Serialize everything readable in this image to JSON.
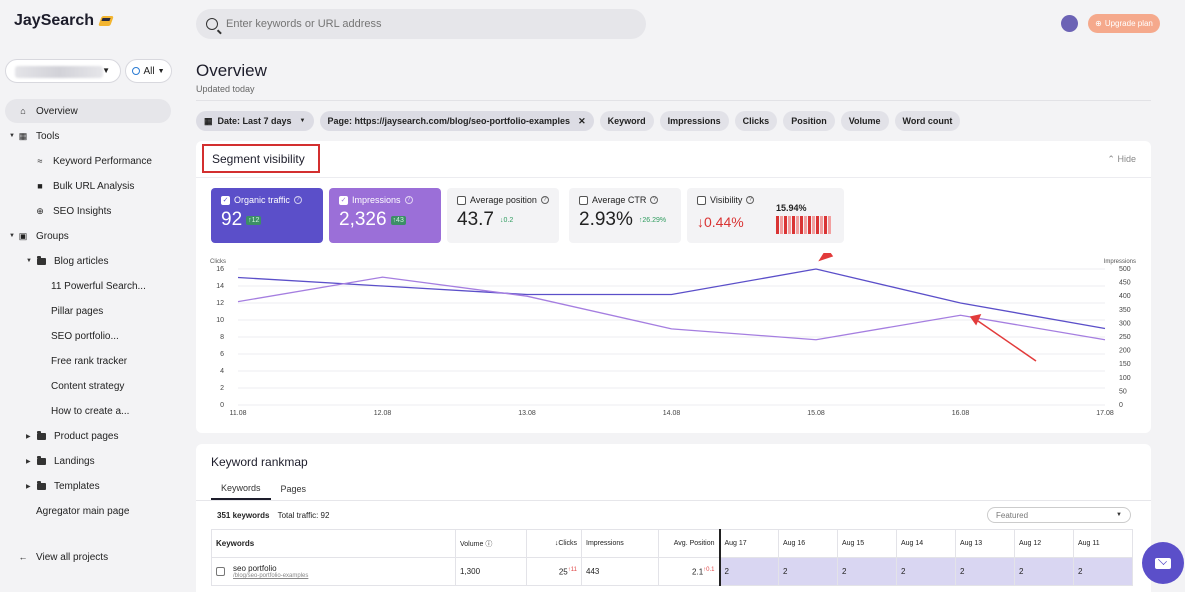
{
  "app": {
    "name": "JaySearch"
  },
  "sidebar": {
    "all_label": "All",
    "items": [
      {
        "label": "Overview"
      },
      {
        "label": "Tools"
      },
      {
        "label": "Keyword Performance"
      },
      {
        "label": "Bulk URL Analysis"
      },
      {
        "label": "SEO Insights"
      },
      {
        "label": "Groups"
      },
      {
        "label": "Blog articles"
      },
      {
        "label": "11 Powerful Search..."
      },
      {
        "label": "Pillar pages"
      },
      {
        "label": "SEO portfolio..."
      },
      {
        "label": "Free rank tracker"
      },
      {
        "label": "Content strategy"
      },
      {
        "label": "How to create a..."
      },
      {
        "label": "Product pages"
      },
      {
        "label": "Landings"
      },
      {
        "label": "Templates"
      },
      {
        "label": "Agregator main page"
      }
    ],
    "view_all": "View all projects"
  },
  "topbar": {
    "search_placeholder": "Enter keywords or URL address",
    "upgrade_label": "Upgrade plan"
  },
  "header": {
    "title": "Overview",
    "updated": "Updated today"
  },
  "filters": {
    "date": "Date: Last 7 days",
    "page": "Page: https://jaysearch.com/blog/seo-portfolio-examples",
    "chips": [
      "Keyword",
      "Impressions",
      "Clicks",
      "Position",
      "Volume",
      "Word count"
    ]
  },
  "segment": {
    "title": "Segment visibility",
    "hide_label": "Hide",
    "metrics": [
      {
        "label": "Organic traffic",
        "value": "92",
        "delta": "↑12"
      },
      {
        "label": "Impressions",
        "value": "2,326",
        "delta": "↑43"
      },
      {
        "label": "Average position",
        "value": "43.7",
        "delta": "↓0.2"
      },
      {
        "label": "Average CTR",
        "value": "2.93%",
        "delta": "↑26.29%"
      },
      {
        "label": "Visibility",
        "value": "↓0.44%",
        "extra": "15.94%"
      }
    ]
  },
  "chart_data": {
    "type": "line",
    "x": [
      "11.08",
      "12.08",
      "13.08",
      "14.08",
      "15.08",
      "16.08",
      "17.08"
    ],
    "series": [
      {
        "name": "Clicks",
        "axis": "left",
        "values": [
          15,
          14,
          13,
          13,
          16,
          12,
          9
        ],
        "color": "#5b4fc9"
      },
      {
        "name": "Impressions",
        "axis": "right",
        "values": [
          380,
          470,
          400,
          280,
          240,
          330,
          240
        ],
        "color": "#a57ee0"
      }
    ],
    "ylabel_left": "Clicks",
    "ylabel_right": "Impressions",
    "ylim_left": [
      0,
      16
    ],
    "ylim_right": [
      0,
      500
    ],
    "yticks_left": [
      0,
      2,
      4,
      6,
      8,
      10,
      12,
      14,
      16
    ],
    "yticks_right": [
      0,
      50,
      100,
      150,
      200,
      250,
      300,
      350,
      400,
      450,
      500
    ],
    "grid": true
  },
  "rankmap": {
    "title": "Keyword rankmap",
    "tabs": [
      "Keywords",
      "Pages"
    ],
    "count_label": "351 keywords",
    "traffic_label": "Total traffic: 92",
    "sort_label": "Featured",
    "columns": [
      "Keywords",
      "Volume",
      "Clicks",
      "Impressions",
      "Avg. Position"
    ],
    "date_columns": [
      "Aug 17",
      "Aug 16",
      "Aug 15",
      "Aug 14",
      "Aug 13",
      "Aug 12",
      "Aug 11"
    ],
    "rows": [
      {
        "keyword": "seo portfolio",
        "url": "/blog/seo-portfolio-examples",
        "volume": "1,300",
        "clicks": "25",
        "clicks_delta": "↑11",
        "impressions": "443",
        "position": "2.1",
        "position_delta": "↑0.1",
        "dates": [
          "2",
          "2",
          "2",
          "2",
          "2",
          "2",
          "2"
        ]
      }
    ]
  }
}
